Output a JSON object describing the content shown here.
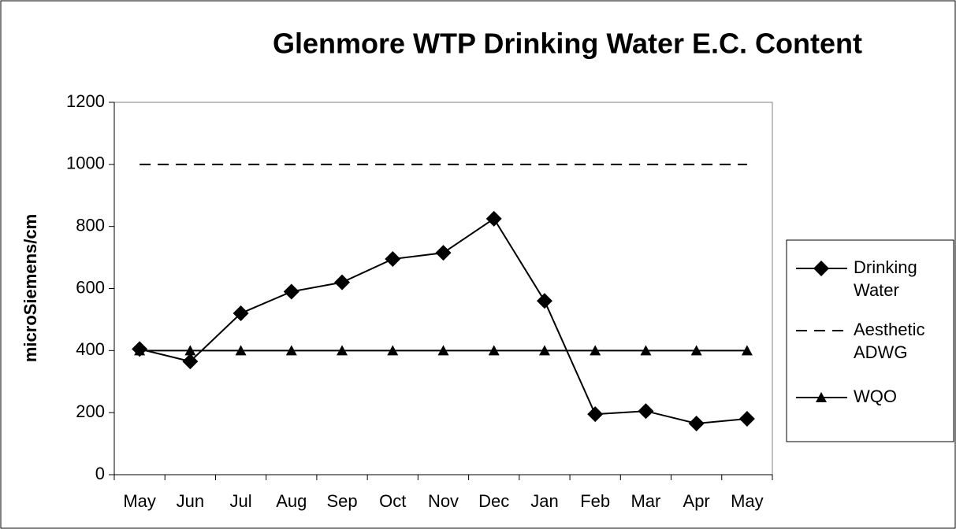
{
  "chart_data": {
    "type": "line",
    "title": "Glenmore WTP Drinking Water E.C. Content",
    "y_label": "microSiemens/cm",
    "categories": [
      "May",
      "Jun",
      "Jul",
      "Aug",
      "Sep",
      "Oct",
      "Nov",
      "Dec",
      "Jan",
      "Feb",
      "Mar",
      "Apr",
      "May"
    ],
    "series": [
      {
        "name": "Drinking Water",
        "color": "#000000",
        "marker": "diamond",
        "dash": false,
        "values": [
          405,
          365,
          520,
          590,
          620,
          695,
          715,
          825,
          560,
          195,
          205,
          165,
          180
        ]
      },
      {
        "name": "Aesthetic ADWG",
        "color": "#000000",
        "marker": "none",
        "dash": true,
        "values": [
          1000,
          1000,
          1000,
          1000,
          1000,
          1000,
          1000,
          1000,
          1000,
          1000,
          1000,
          1000,
          1000
        ]
      },
      {
        "name": "WQO",
        "color": "#000000",
        "marker": "triangle",
        "dash": false,
        "values": [
          400,
          400,
          400,
          400,
          400,
          400,
          400,
          400,
          400,
          400,
          400,
          400,
          400
        ]
      }
    ],
    "ylim": [
      0,
      1200
    ],
    "yticks": [
      0,
      200,
      400,
      600,
      800,
      1000,
      1200
    ],
    "grid": false,
    "legend": "right"
  }
}
